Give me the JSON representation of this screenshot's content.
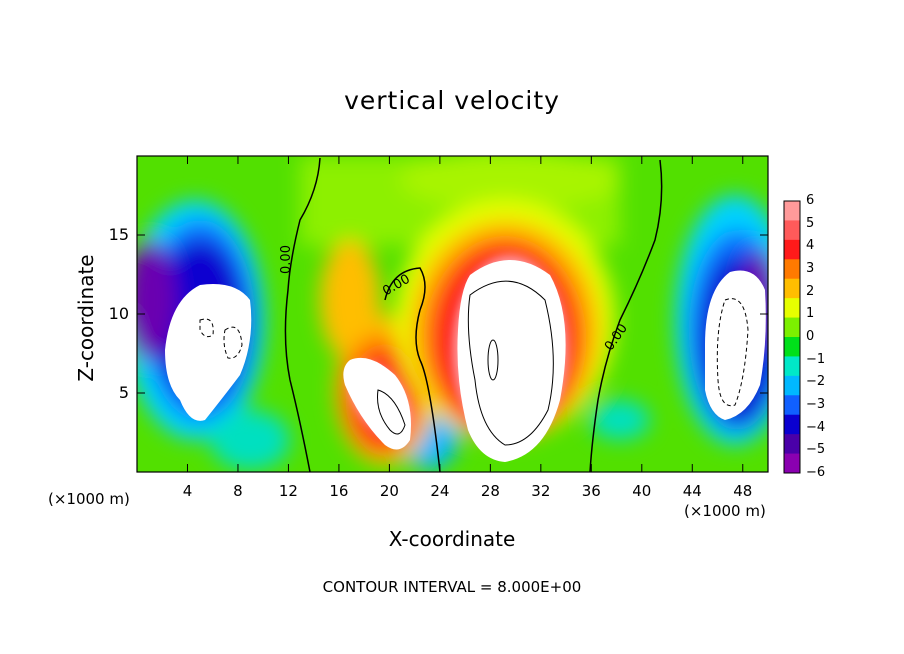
{
  "chart_data": {
    "type": "heatmap",
    "title": "vertical velocity",
    "xlabel": "X-coordinate",
    "ylabel": "Z-coordinate",
    "x_unit_label_left": "(×1000 m)",
    "x_unit_label_right": "(×1000 m)",
    "footer": "CONTOUR INTERVAL = 8.000E+00",
    "xlim": [
      0,
      50
    ],
    "ylim": [
      0,
      20
    ],
    "x_ticks": [
      "4",
      "8",
      "12",
      "16",
      "20",
      "24",
      "28",
      "32",
      "36",
      "40",
      "44",
      "48"
    ],
    "x_tick_values": [
      4,
      8,
      12,
      16,
      20,
      24,
      28,
      32,
      36,
      40,
      44,
      48
    ],
    "y_ticks": [
      "5",
      "10",
      "15"
    ],
    "y_tick_values": [
      5,
      10,
      15
    ],
    "colorbar": {
      "labels": [
        "6",
        "5",
        "4",
        "3",
        "2",
        "1",
        "0",
        "−1",
        "−2",
        "−3",
        "−4",
        "−5",
        "−6"
      ],
      "values": [
        6,
        5,
        4,
        3,
        2,
        1,
        0,
        -1,
        -2,
        -3,
        -4,
        -5,
        -6
      ],
      "colors": [
        "#ff9a9a",
        "#ff5a5a",
        "#ff1a1a",
        "#ff7a00",
        "#ffbe00",
        "#e6ff00",
        "#7cf000",
        "#00e01a",
        "#00e8c8",
        "#00b8ff",
        "#1060ff",
        "#0a00d0",
        "#4a00a8",
        "#8a00b0"
      ]
    },
    "contour_labels": [
      "0.00",
      "0.00",
      "0.00"
    ],
    "features": [
      {
        "kind": "updraft",
        "x": 29.5,
        "z": 10,
        "max": ">6"
      },
      {
        "kind": "updraft",
        "x": 20,
        "z": 4.5,
        "max": ">6"
      },
      {
        "kind": "downdraft",
        "x": 5.5,
        "z": 9,
        "min": "<-6"
      },
      {
        "kind": "downdraft",
        "x": 46.5,
        "z": 8.5,
        "min": "<-6"
      }
    ]
  }
}
